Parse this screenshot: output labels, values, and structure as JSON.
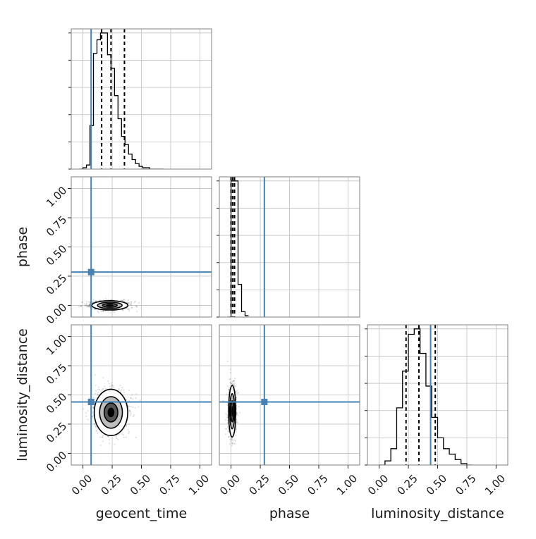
{
  "chart_data": {
    "type": "corner",
    "grid": true,
    "colors": {
      "truth": "#4682b4",
      "hist": "#000000",
      "frame": "#808080",
      "grid": "#c0c0c0",
      "scatter": "#000000"
    },
    "ticks": [
      0.0,
      0.25,
      0.5,
      0.75,
      1.0
    ],
    "tick_labels": [
      "0.00",
      "0.25",
      "0.50",
      "0.75",
      "1.00"
    ],
    "params": [
      {
        "key": "geocent_time",
        "label": "geocent_time",
        "truth": 0.07,
        "quantiles": [
          0.16,
          0.24,
          0.355
        ]
      },
      {
        "key": "phase",
        "label": "phase",
        "truth": 0.285,
        "quantiles": [
          0.0,
          0.015,
          0.03
        ]
      },
      {
        "key": "luminosity_distance",
        "label": "luminosity_distance",
        "truth": 0.44,
        "quantiles": [
          0.23,
          0.34,
          0.48
        ]
      }
    ],
    "histograms": [
      {
        "param": "geocent_time",
        "bin_edges": [
          -0.03,
          0.0,
          0.03,
          0.06,
          0.09,
          0.12,
          0.15,
          0.18,
          0.21,
          0.24,
          0.27,
          0.3,
          0.33,
          0.36,
          0.39,
          0.42,
          0.45,
          0.48,
          0.51,
          0.54,
          0.57,
          0.6,
          0.63,
          0.66,
          0.69
        ],
        "counts": [
          0,
          1,
          3,
          32,
          85,
          95,
          100,
          100,
          84,
          74,
          54,
          37,
          24,
          18,
          11,
          7,
          4,
          2,
          1,
          1,
          0,
          0,
          0,
          0
        ],
        "ylim": [
          0,
          103
        ]
      },
      {
        "param": "phase",
        "bin_edges": [
          -0.03,
          0.0,
          0.03,
          0.06,
          0.09,
          0.12,
          0.15
        ],
        "counts": [
          0,
          100,
          100,
          24,
          4,
          1
        ],
        "ylim": [
          0,
          103
        ]
      },
      {
        "param": "luminosity_distance",
        "bin_edges": [
          0.0,
          0.05,
          0.1,
          0.15,
          0.2,
          0.25,
          0.3,
          0.35,
          0.4,
          0.45,
          0.5,
          0.55,
          0.6,
          0.65,
          0.7,
          0.75,
          0.8
        ],
        "counts": [
          0,
          3,
          12,
          42,
          69,
          96,
          100,
          82,
          58,
          35,
          20,
          12,
          8,
          4,
          1,
          0
        ],
        "ylim": [
          0,
          103
        ]
      }
    ],
    "scatter_panels": [
      {
        "x": "geocent_time",
        "y": "phase",
        "center": [
          0.23,
          0.0
        ],
        "spread": [
          0.07,
          0.018
        ]
      },
      {
        "x": "geocent_time",
        "y": "luminosity_distance",
        "center": [
          0.24,
          0.35
        ],
        "spread": [
          0.065,
          0.09
        ]
      },
      {
        "x": "phase",
        "y": "luminosity_distance",
        "center": [
          0.01,
          0.36
        ],
        "spread": [
          0.014,
          0.1
        ]
      }
    ]
  }
}
